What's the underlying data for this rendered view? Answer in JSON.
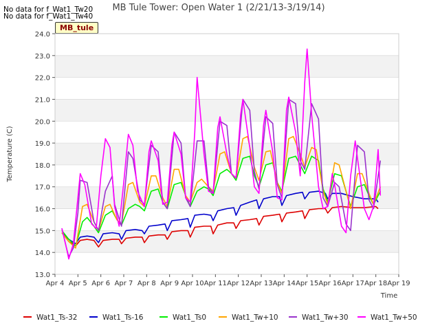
{
  "notices": [
    "No data for f_Wat1_Tw20",
    "No data for f_Wat1_Tw40"
  ],
  "site_badge": "MB_tule",
  "chart_data": {
    "type": "line",
    "title": "MB Tule Tower: Open Water 1 (2/21/13-3/19/14)",
    "xlabel": "Time",
    "ylabel": "Temperature (C)",
    "x_unit": "day of April",
    "xlim": [
      4,
      19
    ],
    "ylim": [
      13.0,
      24.0
    ],
    "x_ticks": [
      4,
      5,
      6,
      7,
      8,
      9,
      10,
      11,
      12,
      13,
      14,
      15,
      16,
      17,
      18,
      19
    ],
    "x_tick_labels": [
      "Apr 4",
      "Apr 5",
      "Apr 6",
      "Apr 7",
      "Apr 8",
      "Apr 9",
      "Apr 10",
      "Apr 11",
      "Apr 12",
      "Apr 13",
      "Apr 14",
      "Apr 15",
      "Apr 16",
      "Apr 17",
      "Apr 18",
      "Apr 19"
    ],
    "y_ticks": [
      13.0,
      14.0,
      15.0,
      16.0,
      17.0,
      18.0,
      19.0,
      20.0,
      21.0,
      22.0,
      23.0,
      24.0
    ],
    "y_tick_labels": [
      "13.0",
      "14.0",
      "15.0",
      "16.0",
      "17.0",
      "18.0",
      "19.0",
      "20.0",
      "21.0",
      "22.0",
      "23.0",
      "24.0"
    ],
    "grid": "horizontal alternating bands",
    "legend_position": "bottom",
    "series": [
      {
        "name": "Wat1_Ts-32",
        "color": "#dd0000",
        "x": [
          4.3,
          4.6,
          4.9,
          5.1,
          5.4,
          5.7,
          5.9,
          6.1,
          6.5,
          6.8,
          6.9,
          7.1,
          7.5,
          7.8,
          7.9,
          8.1,
          8.5,
          8.8,
          8.9,
          9.1,
          9.5,
          9.8,
          9.9,
          10.1,
          10.5,
          10.8,
          10.9,
          11.1,
          11.5,
          11.8,
          11.9,
          12.1,
          12.5,
          12.8,
          12.9,
          13.1,
          13.5,
          13.8,
          13.9,
          14.1,
          14.5,
          14.8,
          14.9,
          15.1,
          15.5,
          15.8,
          15.9,
          16.1,
          16.5,
          17.0,
          17.5,
          18.0,
          18.1
        ],
        "y": [
          14.9,
          14.5,
          14.3,
          14.55,
          14.6,
          14.55,
          14.25,
          14.55,
          14.6,
          14.6,
          14.4,
          14.65,
          14.7,
          14.7,
          14.45,
          14.75,
          14.8,
          14.8,
          14.6,
          14.95,
          15.0,
          15.0,
          14.7,
          15.15,
          15.2,
          15.2,
          14.85,
          15.25,
          15.35,
          15.35,
          15.1,
          15.45,
          15.5,
          15.55,
          15.25,
          15.65,
          15.7,
          15.75,
          15.4,
          15.8,
          15.85,
          15.9,
          15.55,
          15.95,
          16.0,
          16.0,
          15.8,
          16.05,
          16.1,
          16.05,
          16.05,
          16.1,
          16.0
        ]
      },
      {
        "name": "Wat1_Ts-16",
        "color": "#0000cc",
        "x": [
          4.3,
          4.6,
          4.9,
          5.1,
          5.4,
          5.7,
          5.9,
          6.1,
          6.5,
          6.8,
          6.9,
          7.1,
          7.5,
          7.8,
          7.9,
          8.1,
          8.5,
          8.8,
          8.9,
          9.1,
          9.5,
          9.8,
          9.9,
          10.1,
          10.5,
          10.8,
          10.9,
          11.1,
          11.5,
          11.8,
          11.9,
          12.1,
          12.5,
          12.8,
          12.9,
          13.1,
          13.5,
          13.8,
          13.9,
          14.1,
          14.5,
          14.8,
          14.9,
          15.1,
          15.5,
          15.8,
          15.9,
          16.1,
          16.5,
          17.0,
          17.5,
          18.0,
          18.1
        ],
        "y": [
          14.9,
          14.6,
          14.4,
          14.7,
          14.75,
          14.7,
          14.45,
          14.85,
          14.9,
          14.85,
          14.6,
          15.0,
          15.05,
          15.0,
          14.85,
          15.2,
          15.25,
          15.3,
          15.0,
          15.45,
          15.5,
          15.55,
          15.15,
          15.7,
          15.75,
          15.7,
          15.45,
          15.9,
          16.0,
          16.05,
          15.7,
          16.15,
          16.3,
          16.4,
          16.0,
          16.45,
          16.55,
          16.55,
          16.15,
          16.6,
          16.7,
          16.75,
          16.45,
          16.75,
          16.8,
          16.7,
          16.45,
          16.7,
          16.7,
          16.55,
          16.45,
          16.45,
          16.3
        ]
      },
      {
        "name": "Wat1_Ts0",
        "color": "#00ee00",
        "x": [
          4.3,
          4.6,
          4.9,
          5.2,
          5.4,
          5.7,
          5.9,
          6.2,
          6.5,
          6.7,
          6.9,
          7.2,
          7.5,
          7.7,
          7.9,
          8.2,
          8.5,
          8.7,
          8.9,
          9.2,
          9.5,
          9.7,
          9.9,
          10.2,
          10.5,
          10.7,
          10.9,
          11.2,
          11.5,
          11.7,
          11.9,
          12.2,
          12.5,
          12.7,
          12.9,
          13.2,
          13.5,
          13.7,
          13.9,
          14.2,
          14.5,
          14.7,
          14.9,
          15.2,
          15.5,
          15.7,
          15.9,
          16.2,
          16.5,
          16.7,
          16.9,
          17.2,
          17.5,
          17.7,
          17.9,
          18.2
        ],
        "y": [
          15.0,
          14.6,
          14.3,
          15.4,
          15.6,
          15.2,
          14.9,
          15.7,
          15.9,
          15.5,
          15.25,
          16.0,
          16.2,
          16.1,
          15.9,
          16.8,
          16.9,
          16.3,
          16.0,
          17.1,
          17.2,
          16.6,
          16.1,
          16.8,
          17.0,
          16.9,
          16.6,
          17.6,
          17.8,
          17.6,
          17.3,
          18.3,
          18.4,
          17.5,
          17.0,
          18.0,
          18.1,
          17.2,
          16.8,
          18.3,
          18.4,
          18.0,
          17.6,
          18.4,
          18.2,
          16.9,
          16.3,
          17.6,
          17.5,
          16.8,
          16.1,
          17.0,
          17.1,
          16.6,
          16.2,
          16.8
        ]
      },
      {
        "name": "Wat1_Tw+10",
        "color": "#ffa500",
        "x": [
          4.3,
          4.6,
          4.9,
          5.2,
          5.4,
          5.7,
          5.9,
          6.2,
          6.4,
          6.7,
          6.9,
          7.2,
          7.4,
          7.7,
          7.9,
          8.2,
          8.4,
          8.7,
          8.9,
          9.2,
          9.4,
          9.7,
          9.9,
          10.2,
          10.4,
          10.7,
          10.9,
          11.2,
          11.4,
          11.7,
          11.9,
          12.2,
          12.4,
          12.7,
          12.9,
          13.2,
          13.4,
          13.7,
          13.9,
          14.2,
          14.4,
          14.7,
          14.9,
          15.2,
          15.4,
          15.7,
          15.9,
          16.2,
          16.4,
          16.7,
          16.9,
          17.2,
          17.4,
          17.7,
          17.9,
          18.2
        ],
        "y": [
          14.9,
          14.5,
          14.2,
          16.1,
          16.2,
          15.4,
          15.0,
          16.1,
          16.2,
          15.5,
          15.3,
          17.1,
          17.2,
          16.3,
          16.1,
          17.5,
          17.5,
          16.5,
          16.1,
          17.8,
          17.8,
          16.6,
          16.3,
          17.2,
          17.35,
          17.0,
          16.8,
          18.5,
          18.6,
          17.6,
          17.4,
          19.2,
          19.3,
          17.9,
          17.3,
          18.6,
          18.65,
          17.2,
          16.7,
          19.2,
          19.3,
          18.5,
          17.9,
          18.8,
          18.7,
          16.8,
          16.2,
          18.1,
          18.0,
          16.8,
          16.0,
          17.6,
          17.6,
          16.7,
          16.2,
          17.0
        ]
      },
      {
        "name": "Wat1_Tw+30",
        "color": "#9932cc",
        "x": [
          4.3,
          4.5,
          4.6,
          4.8,
          5.0,
          5.1,
          5.4,
          5.7,
          5.9,
          6.2,
          6.5,
          6.6,
          6.9,
          7.2,
          7.4,
          7.7,
          7.9,
          8.2,
          8.5,
          8.7,
          8.9,
          9.2,
          9.5,
          9.7,
          9.9,
          10.2,
          10.5,
          10.7,
          10.9,
          11.2,
          11.5,
          11.7,
          11.9,
          12.2,
          12.5,
          12.7,
          12.9,
          13.2,
          13.5,
          13.7,
          13.9,
          14.2,
          14.5,
          14.7,
          14.9,
          15.2,
          15.5,
          15.7,
          15.9,
          16.2,
          16.4,
          16.7,
          16.9,
          17.2,
          17.5,
          17.7,
          17.9,
          18.2
        ],
        "y": [
          15.1,
          14.2,
          13.8,
          14.2,
          15.8,
          17.3,
          17.2,
          15.4,
          15.0,
          16.8,
          17.5,
          16.2,
          15.2,
          18.6,
          18.3,
          16.4,
          16.2,
          18.9,
          18.6,
          16.3,
          16.0,
          19.5,
          19.0,
          16.5,
          16.1,
          19.1,
          19.1,
          17.0,
          16.7,
          20.0,
          19.8,
          17.6,
          17.4,
          21.0,
          20.5,
          17.7,
          16.9,
          20.2,
          19.9,
          17.1,
          16.5,
          21.0,
          20.8,
          18.2,
          17.8,
          20.8,
          20.1,
          16.5,
          16.1,
          17.2,
          17.0,
          15.3,
          15.0,
          18.9,
          18.6,
          16.4,
          16.0,
          18.2
        ]
      },
      {
        "name": "Wat1_Tw+50",
        "color": "#ff00ff",
        "x": [
          4.3,
          4.5,
          4.6,
          4.8,
          5.0,
          5.1,
          5.3,
          5.6,
          5.8,
          6.0,
          6.2,
          6.4,
          6.6,
          6.8,
          7.0,
          7.2,
          7.4,
          7.6,
          7.9,
          8.1,
          8.2,
          8.5,
          8.7,
          8.9,
          9.1,
          9.2,
          9.5,
          9.7,
          9.9,
          10.1,
          10.2,
          10.5,
          10.7,
          10.9,
          11.1,
          11.2,
          11.5,
          11.7,
          11.9,
          12.1,
          12.2,
          12.5,
          12.7,
          12.9,
          13.1,
          13.2,
          13.5,
          13.7,
          13.9,
          14.1,
          14.2,
          14.5,
          14.7,
          14.9,
          15.0,
          15.2,
          15.5,
          15.7,
          15.9,
          16.1,
          16.2,
          16.5,
          16.7,
          16.9,
          17.1,
          17.2,
          17.5,
          17.7,
          17.9,
          18.1,
          18.2
        ],
        "y": [
          15.1,
          14.2,
          13.7,
          14.4,
          16.5,
          17.6,
          17.1,
          15.3,
          15.1,
          17.5,
          19.2,
          18.8,
          16.1,
          15.2,
          17.2,
          19.4,
          18.9,
          16.8,
          16.1,
          18.6,
          19.1,
          18.2,
          16.2,
          16.3,
          18.9,
          19.5,
          18.5,
          16.5,
          16.3,
          19.5,
          22.0,
          18.5,
          16.8,
          16.7,
          19.7,
          20.2,
          18.5,
          17.6,
          17.4,
          20.3,
          21.0,
          18.8,
          17.0,
          16.7,
          19.8,
          20.5,
          18.6,
          16.5,
          16.4,
          20.5,
          21.1,
          19.5,
          17.5,
          21.8,
          23.3,
          20.3,
          17.0,
          16.0,
          16.1,
          17.6,
          17.1,
          15.2,
          14.9,
          17.5,
          19.1,
          18.3,
          16.0,
          15.5,
          16.1,
          18.7,
          16.6
        ]
      }
    ]
  }
}
